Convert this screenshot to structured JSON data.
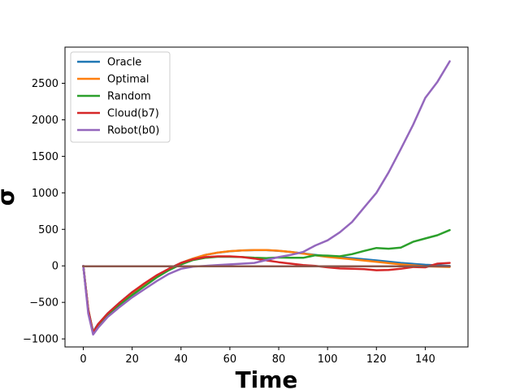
{
  "chart_data": {
    "type": "line",
    "title": "",
    "xlabel": "Time",
    "ylabel": "σ",
    "xlim": [
      -7.5,
      157.5
    ],
    "ylim": [
      -1110,
      2995
    ],
    "xticks": [
      0,
      20,
      40,
      60,
      80,
      100,
      120,
      140
    ],
    "yticks": [
      -1000,
      -500,
      0,
      500,
      1000,
      1500,
      2000,
      2500
    ],
    "grid": false,
    "legend_position": "top-left",
    "series": [
      {
        "name": "Oracle",
        "color": "#1f77b4",
        "x": [
          0,
          2,
          4,
          6,
          10,
          15,
          20,
          25,
          30,
          35,
          40,
          45,
          50,
          55,
          60,
          65,
          70,
          75,
          80,
          85,
          90,
          95,
          100,
          110,
          120,
          130,
          140,
          150
        ],
        "y": [
          0,
          -600,
          -900,
          -800,
          -650,
          -500,
          -360,
          -250,
          -140,
          -40,
          40,
          100,
          150,
          180,
          200,
          210,
          215,
          215,
          205,
          190,
          170,
          150,
          130,
          105,
          75,
          40,
          15,
          0
        ]
      },
      {
        "name": "Optimal",
        "color": "#ff7f0e",
        "x": [
          0,
          2,
          4,
          6,
          10,
          15,
          20,
          25,
          30,
          35,
          40,
          45,
          50,
          55,
          60,
          65,
          70,
          75,
          80,
          85,
          90,
          95,
          100,
          110,
          120,
          130,
          140,
          150
        ],
        "y": [
          0,
          -600,
          -910,
          -810,
          -660,
          -510,
          -370,
          -255,
          -145,
          -45,
          40,
          100,
          150,
          182,
          202,
          212,
          217,
          217,
          207,
          190,
          168,
          145,
          122,
          90,
          55,
          20,
          -5,
          -15
        ]
      },
      {
        "name": "Random",
        "color": "#2ca02c",
        "x": [
          0,
          2,
          4,
          6,
          10,
          15,
          20,
          25,
          30,
          35,
          40,
          45,
          50,
          55,
          60,
          65,
          70,
          75,
          80,
          85,
          90,
          95,
          100,
          105,
          110,
          115,
          120,
          125,
          130,
          135,
          140,
          145,
          150
        ],
        "y": [
          0,
          -600,
          -920,
          -820,
          -680,
          -530,
          -400,
          -280,
          -160,
          -60,
          20,
          80,
          110,
          125,
          125,
          120,
          110,
          105,
          115,
          110,
          110,
          145,
          140,
          130,
          160,
          205,
          245,
          235,
          250,
          330,
          375,
          420,
          490
        ]
      },
      {
        "name": "Cloud(b7)",
        "color": "#d62728",
        "x": [
          0,
          2,
          4,
          6,
          10,
          15,
          20,
          25,
          30,
          35,
          40,
          45,
          50,
          55,
          60,
          65,
          70,
          75,
          80,
          85,
          90,
          95,
          100,
          105,
          110,
          115,
          120,
          125,
          130,
          135,
          140,
          145,
          150
        ],
        "y": [
          0,
          -600,
          -920,
          -800,
          -650,
          -500,
          -360,
          -240,
          -130,
          -40,
          40,
          90,
          120,
          130,
          130,
          120,
          100,
          75,
          50,
          30,
          10,
          0,
          -20,
          -35,
          -40,
          -45,
          -60,
          -55,
          -40,
          -15,
          -20,
          30,
          40
        ]
      },
      {
        "name": "Robot(b0)",
        "color": "#9467bd",
        "x": [
          0,
          2,
          4,
          6,
          10,
          15,
          20,
          25,
          30,
          35,
          40,
          45,
          50,
          55,
          60,
          65,
          70,
          75,
          80,
          85,
          90,
          95,
          100,
          105,
          110,
          115,
          120,
          125,
          130,
          135,
          140,
          145,
          150
        ],
        "y": [
          0,
          -650,
          -940,
          -850,
          -700,
          -560,
          -430,
          -320,
          -210,
          -110,
          -40,
          -10,
          0,
          10,
          20,
          30,
          40,
          80,
          120,
          150,
          190,
          280,
          350,
          460,
          600,
          800,
          1000,
          1280,
          1600,
          1930,
          2300,
          2520,
          2800
        ]
      },
      {
        "name": "",
        "color": "#8c564b",
        "x": [
          0,
          150
        ],
        "y": [
          -5,
          -5
        ]
      }
    ]
  }
}
